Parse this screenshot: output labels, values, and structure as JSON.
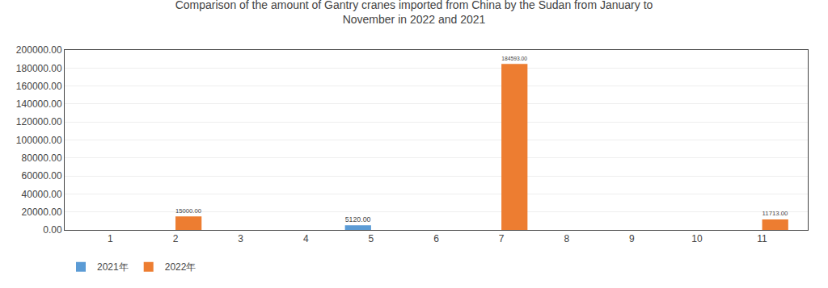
{
  "chart_data": {
    "type": "bar",
    "title": "Comparison of the amount of Gantry cranes imported from China by the Sudan from January to\nNovember in 2022 and 2021",
    "x": [
      1,
      2,
      3,
      4,
      5,
      6,
      7,
      8,
      9,
      10,
      11
    ],
    "xlim": [
      0.3,
      11.7
    ],
    "xticks": [
      1,
      2,
      3,
      4,
      5,
      6,
      7,
      8,
      9,
      10,
      11
    ],
    "series": [
      {
        "name": "2021年",
        "color": "#5B9BD5",
        "values": [
          0,
          0,
          0,
          0,
          5120.0,
          0,
          0,
          0,
          0,
          0,
          0
        ],
        "value_labels": [
          null,
          null,
          null,
          null,
          "5120.00",
          null,
          null,
          null,
          null,
          null,
          null
        ]
      },
      {
        "name": "2022年",
        "color": "#ED7D31",
        "values": [
          0,
          15000.0,
          0,
          0,
          0,
          0,
          184593.0,
          0,
          0,
          0,
          11713.0
        ],
        "value_labels": [
          null,
          "15000.00",
          null,
          null,
          null,
          null,
          "184593.00",
          null,
          null,
          null,
          "11713.00"
        ]
      }
    ],
    "ylim": [
      0,
      200000
    ],
    "yticks": [
      {
        "value": 0,
        "label": "0.00"
      },
      {
        "value": 20000,
        "label": "20000.00"
      },
      {
        "value": 40000,
        "label": "40000.00"
      },
      {
        "value": 60000,
        "label": "60000.00"
      },
      {
        "value": 80000,
        "label": "80000.00"
      },
      {
        "value": 100000,
        "label": "100000.00"
      },
      {
        "value": 120000,
        "label": "120000.00"
      },
      {
        "value": 140000,
        "label": "140000.00"
      },
      {
        "value": 160000,
        "label": "160000.00"
      },
      {
        "value": 180000,
        "label": "180000.00"
      },
      {
        "value": 200000,
        "label": "200000.00"
      }
    ],
    "grid": true,
    "legend": "lower left",
    "data_labels": true
  }
}
